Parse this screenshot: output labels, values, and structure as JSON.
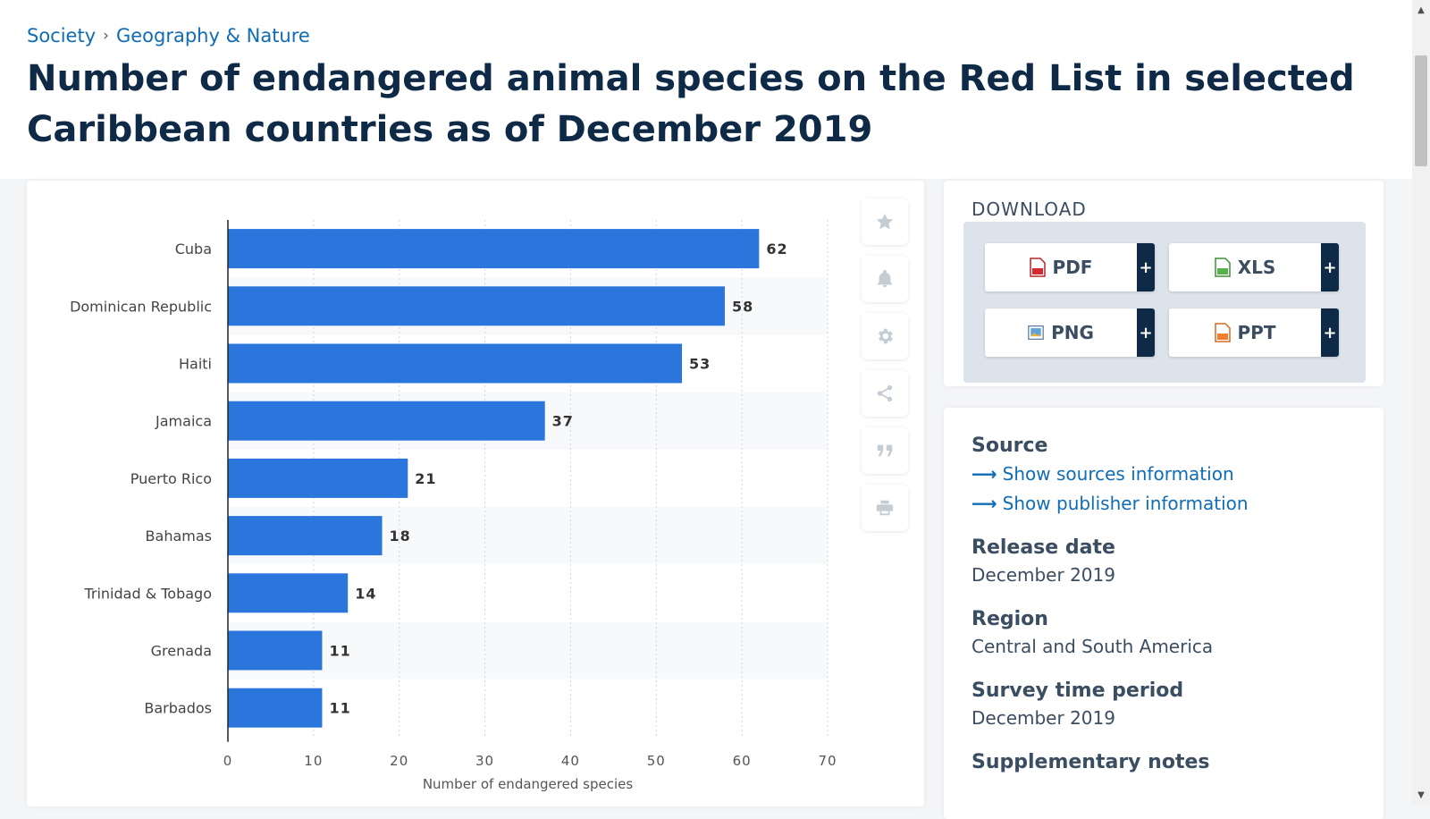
{
  "breadcrumb": {
    "items": [
      "Society",
      "Geography & Nature"
    ],
    "separator": "›"
  },
  "title": "Number of endangered animal species on the Red List in selected Caribbean countries as of December 2019",
  "chart_data": {
    "type": "bar",
    "orientation": "horizontal",
    "categories": [
      "Cuba",
      "Dominican Republic",
      "Haiti",
      "Jamaica",
      "Puerto Rico",
      "Bahamas",
      "Trinidad & Tobago",
      "Grenada",
      "Barbados"
    ],
    "values": [
      62,
      58,
      53,
      37,
      21,
      18,
      14,
      11,
      11
    ],
    "xlabel": "Number of endangered species",
    "ylabel": "",
    "xlim": [
      0,
      70
    ],
    "xticks": [
      0,
      10,
      20,
      30,
      40,
      50,
      60,
      70
    ],
    "grid": true,
    "bar_color": "#2a76dd"
  },
  "toolbar": {
    "icons": [
      "star-icon",
      "bell-icon",
      "gear-icon",
      "share-icon",
      "quote-icon",
      "print-icon"
    ]
  },
  "download": {
    "title": "DOWNLOAD",
    "buttons": [
      {
        "label": "PDF",
        "icon": "pdf-file-icon",
        "plus": "+"
      },
      {
        "label": "XLS",
        "icon": "xls-file-icon",
        "plus": "+"
      },
      {
        "label": "PNG",
        "icon": "png-file-icon",
        "plus": "+"
      },
      {
        "label": "PPT",
        "icon": "ppt-file-icon",
        "plus": "+"
      }
    ]
  },
  "info": {
    "source_heading": "Source",
    "source_link": "Show sources information",
    "publisher_link": "Show publisher information",
    "release_heading": "Release date",
    "release_value": "December 2019",
    "region_heading": "Region",
    "region_value": "Central and South America",
    "survey_heading": "Survey time period",
    "survey_value": "December 2019",
    "supplementary_heading": "Supplementary notes"
  },
  "colors": {
    "accent": "#0f6cb5",
    "navy": "#0f2a46",
    "bar": "#2a76dd"
  }
}
